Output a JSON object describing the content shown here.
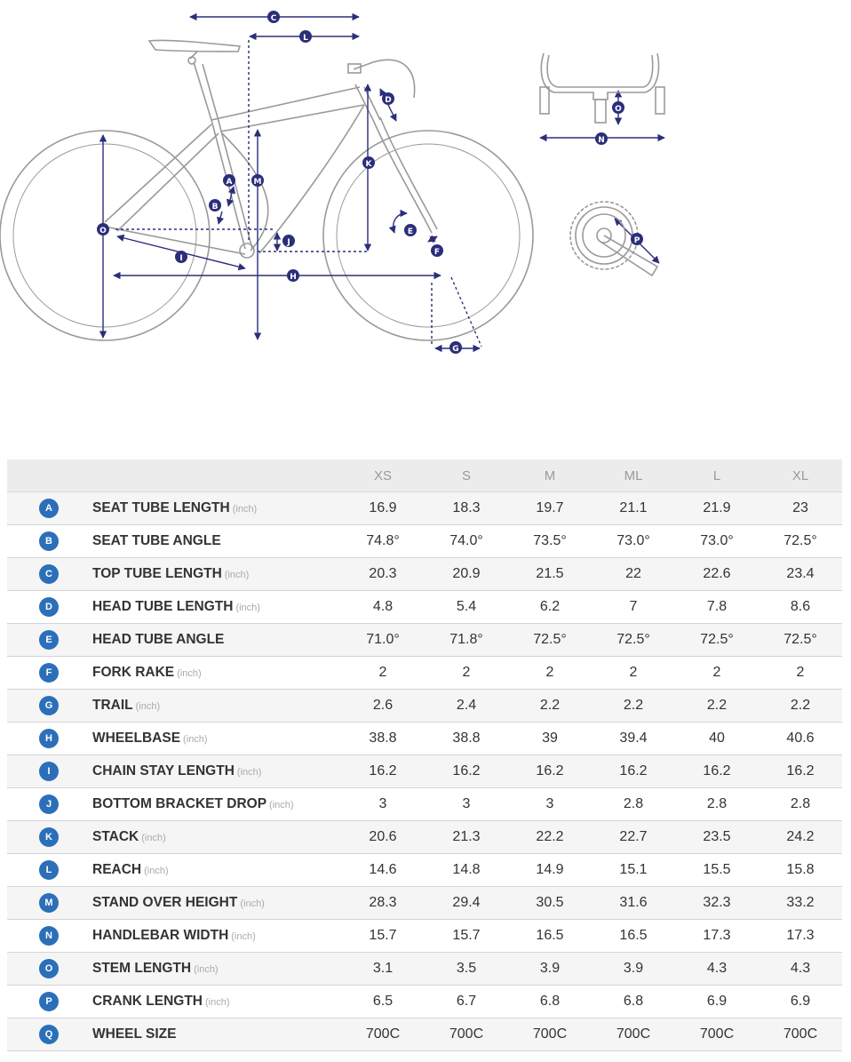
{
  "diagram": {
    "labels": [
      "A",
      "B",
      "C",
      "D",
      "E",
      "F",
      "G",
      "H",
      "I",
      "J",
      "K",
      "L",
      "M",
      "N",
      "O",
      "P"
    ],
    "colors": {
      "frame_line": "#9a9a9a",
      "dimension": "#2b2e7a",
      "badge_text": "#ffffff"
    }
  },
  "table": {
    "sizes": [
      "XS",
      "S",
      "M",
      "ML",
      "L",
      "XL"
    ],
    "rows": [
      {
        "letter": "A",
        "name": "SEAT TUBE LENGTH",
        "unit": "(inch)",
        "values": [
          "16.9",
          "18.3",
          "19.7",
          "21.1",
          "21.9",
          "23"
        ]
      },
      {
        "letter": "B",
        "name": "SEAT TUBE ANGLE",
        "unit": "",
        "values": [
          "74.8°",
          "74.0°",
          "73.5°",
          "73.0°",
          "73.0°",
          "72.5°"
        ]
      },
      {
        "letter": "C",
        "name": "TOP TUBE LENGTH",
        "unit": "(inch)",
        "values": [
          "20.3",
          "20.9",
          "21.5",
          "22",
          "22.6",
          "23.4"
        ]
      },
      {
        "letter": "D",
        "name": "HEAD TUBE LENGTH",
        "unit": "(inch)",
        "values": [
          "4.8",
          "5.4",
          "6.2",
          "7",
          "7.8",
          "8.6"
        ]
      },
      {
        "letter": "E",
        "name": "HEAD TUBE ANGLE",
        "unit": "",
        "values": [
          "71.0°",
          "71.8°",
          "72.5°",
          "72.5°",
          "72.5°",
          "72.5°"
        ]
      },
      {
        "letter": "F",
        "name": "FORK RAKE",
        "unit": "(inch)",
        "values": [
          "2",
          "2",
          "2",
          "2",
          "2",
          "2"
        ]
      },
      {
        "letter": "G",
        "name": "TRAIL",
        "unit": "(inch)",
        "values": [
          "2.6",
          "2.4",
          "2.2",
          "2.2",
          "2.2",
          "2.2"
        ]
      },
      {
        "letter": "H",
        "name": "WHEELBASE",
        "unit": "(inch)",
        "values": [
          "38.8",
          "38.8",
          "39",
          "39.4",
          "40",
          "40.6"
        ]
      },
      {
        "letter": "I",
        "name": "CHAIN STAY LENGTH",
        "unit": "(inch)",
        "values": [
          "16.2",
          "16.2",
          "16.2",
          "16.2",
          "16.2",
          "16.2"
        ]
      },
      {
        "letter": "J",
        "name": "BOTTOM BRACKET DROP",
        "unit": "(inch)",
        "values": [
          "3",
          "3",
          "3",
          "2.8",
          "2.8",
          "2.8"
        ]
      },
      {
        "letter": "K",
        "name": "STACK",
        "unit": "(inch)",
        "values": [
          "20.6",
          "21.3",
          "22.2",
          "22.7",
          "23.5",
          "24.2"
        ]
      },
      {
        "letter": "L",
        "name": "REACH",
        "unit": "(inch)",
        "values": [
          "14.6",
          "14.8",
          "14.9",
          "15.1",
          "15.5",
          "15.8"
        ]
      },
      {
        "letter": "M",
        "name": "STAND OVER HEIGHT",
        "unit": "(inch)",
        "values": [
          "28.3",
          "29.4",
          "30.5",
          "31.6",
          "32.3",
          "33.2"
        ]
      },
      {
        "letter": "N",
        "name": "HANDLEBAR WIDTH",
        "unit": "(inch)",
        "values": [
          "15.7",
          "15.7",
          "16.5",
          "16.5",
          "17.3",
          "17.3"
        ]
      },
      {
        "letter": "O",
        "name": "STEM LENGTH",
        "unit": "(inch)",
        "values": [
          "3.1",
          "3.5",
          "3.9",
          "3.9",
          "4.3",
          "4.3"
        ]
      },
      {
        "letter": "P",
        "name": "CRANK LENGTH",
        "unit": "(inch)",
        "values": [
          "6.5",
          "6.7",
          "6.8",
          "6.8",
          "6.9",
          "6.9"
        ]
      },
      {
        "letter": "Q",
        "name": "WHEEL SIZE",
        "unit": "",
        "values": [
          "700C",
          "700C",
          "700C",
          "700C",
          "700C",
          "700C"
        ]
      }
    ]
  }
}
